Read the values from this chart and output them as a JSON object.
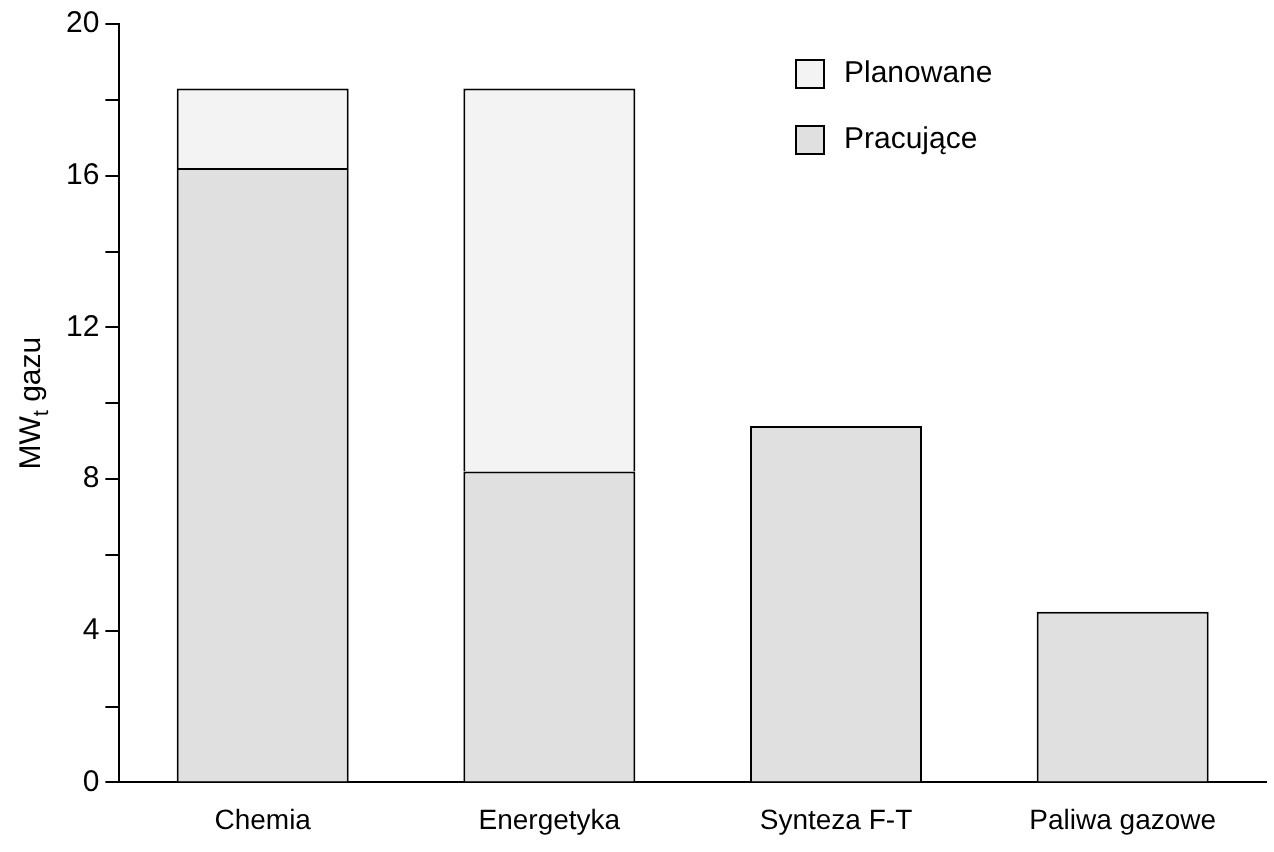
{
  "chart_data": {
    "type": "bar",
    "stacked": true,
    "ylabel": "MW$_{t}$ gazu",
    "categories": [
      "Chemia",
      "Energetyka",
      "Synteza F-T",
      "Paliwa gazowe"
    ],
    "series": [
      {
        "name": "Pracujące",
        "color": "#e0e0e0",
        "values": [
          16.2,
          8.2,
          9.4,
          4.5
        ]
      },
      {
        "name": "Planowane",
        "color": "#f3f3f3",
        "values": [
          2.1,
          10.1,
          null,
          null
        ]
      }
    ],
    "ylim": [
      0,
      20
    ],
    "yticks": [
      0,
      {
        "value": 2,
        "label": null
      },
      4,
      {
        "value": 6,
        "label": null
      },
      8,
      {
        "value": 10,
        "label": null
      },
      12,
      {
        "value": 14,
        "label": null
      },
      16,
      {
        "value": 18,
        "label": null
      },
      20
    ],
    "grid": false,
    "legend": "top right"
  }
}
